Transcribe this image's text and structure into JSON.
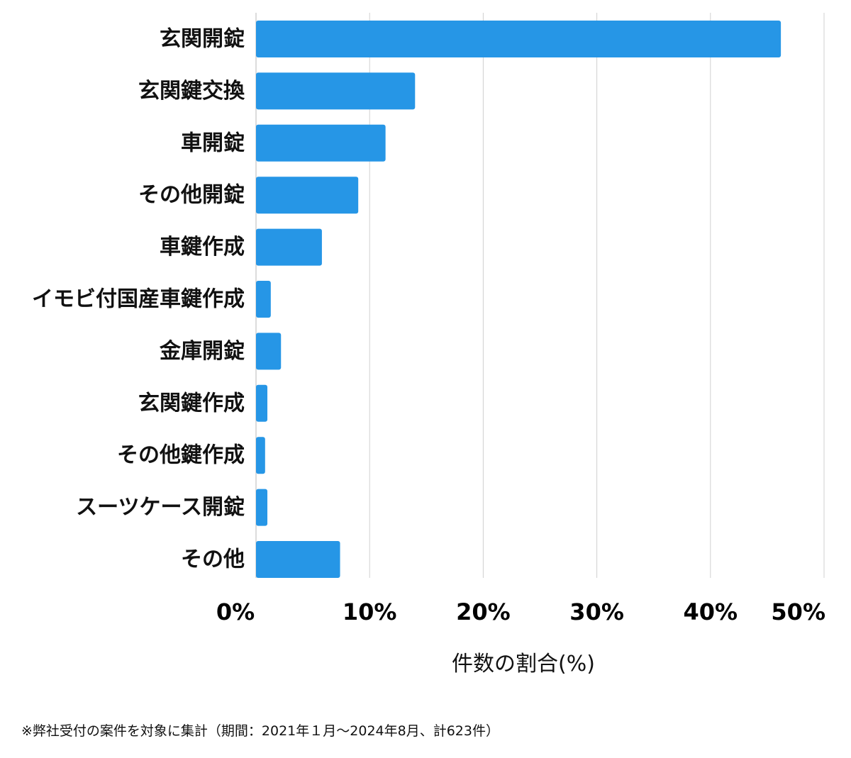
{
  "chart_data": {
    "type": "bar",
    "orientation": "horizontal",
    "categories": [
      "玄関開錠",
      "玄関鍵交換",
      "車開錠",
      "その他開錠",
      "車鍵作成",
      "イモビ付国産車鍵作成",
      "金庫開錠",
      "玄関鍵作成",
      "その他鍵作成",
      "スーツケース開錠",
      "その他"
    ],
    "values": [
      46.2,
      14.0,
      11.4,
      9.0,
      5.8,
      1.3,
      2.2,
      1.0,
      0.8,
      1.0,
      7.4
    ],
    "xlim": [
      0,
      50
    ],
    "xticks": [
      0,
      10,
      20,
      30,
      40,
      50
    ],
    "xtick_labels": [
      "0%",
      "10%",
      "20%",
      "30%",
      "40%",
      "50%"
    ],
    "xlabel": "件数の割合(%)",
    "ylabel": "",
    "title": "",
    "grid": "vertical",
    "bar_color": "#2696e6",
    "grid_color": "#d0d0d0"
  },
  "footnote": "※弊社受付の案件を対象に集計（期間：2021年１月～2024年8月、計623件）"
}
